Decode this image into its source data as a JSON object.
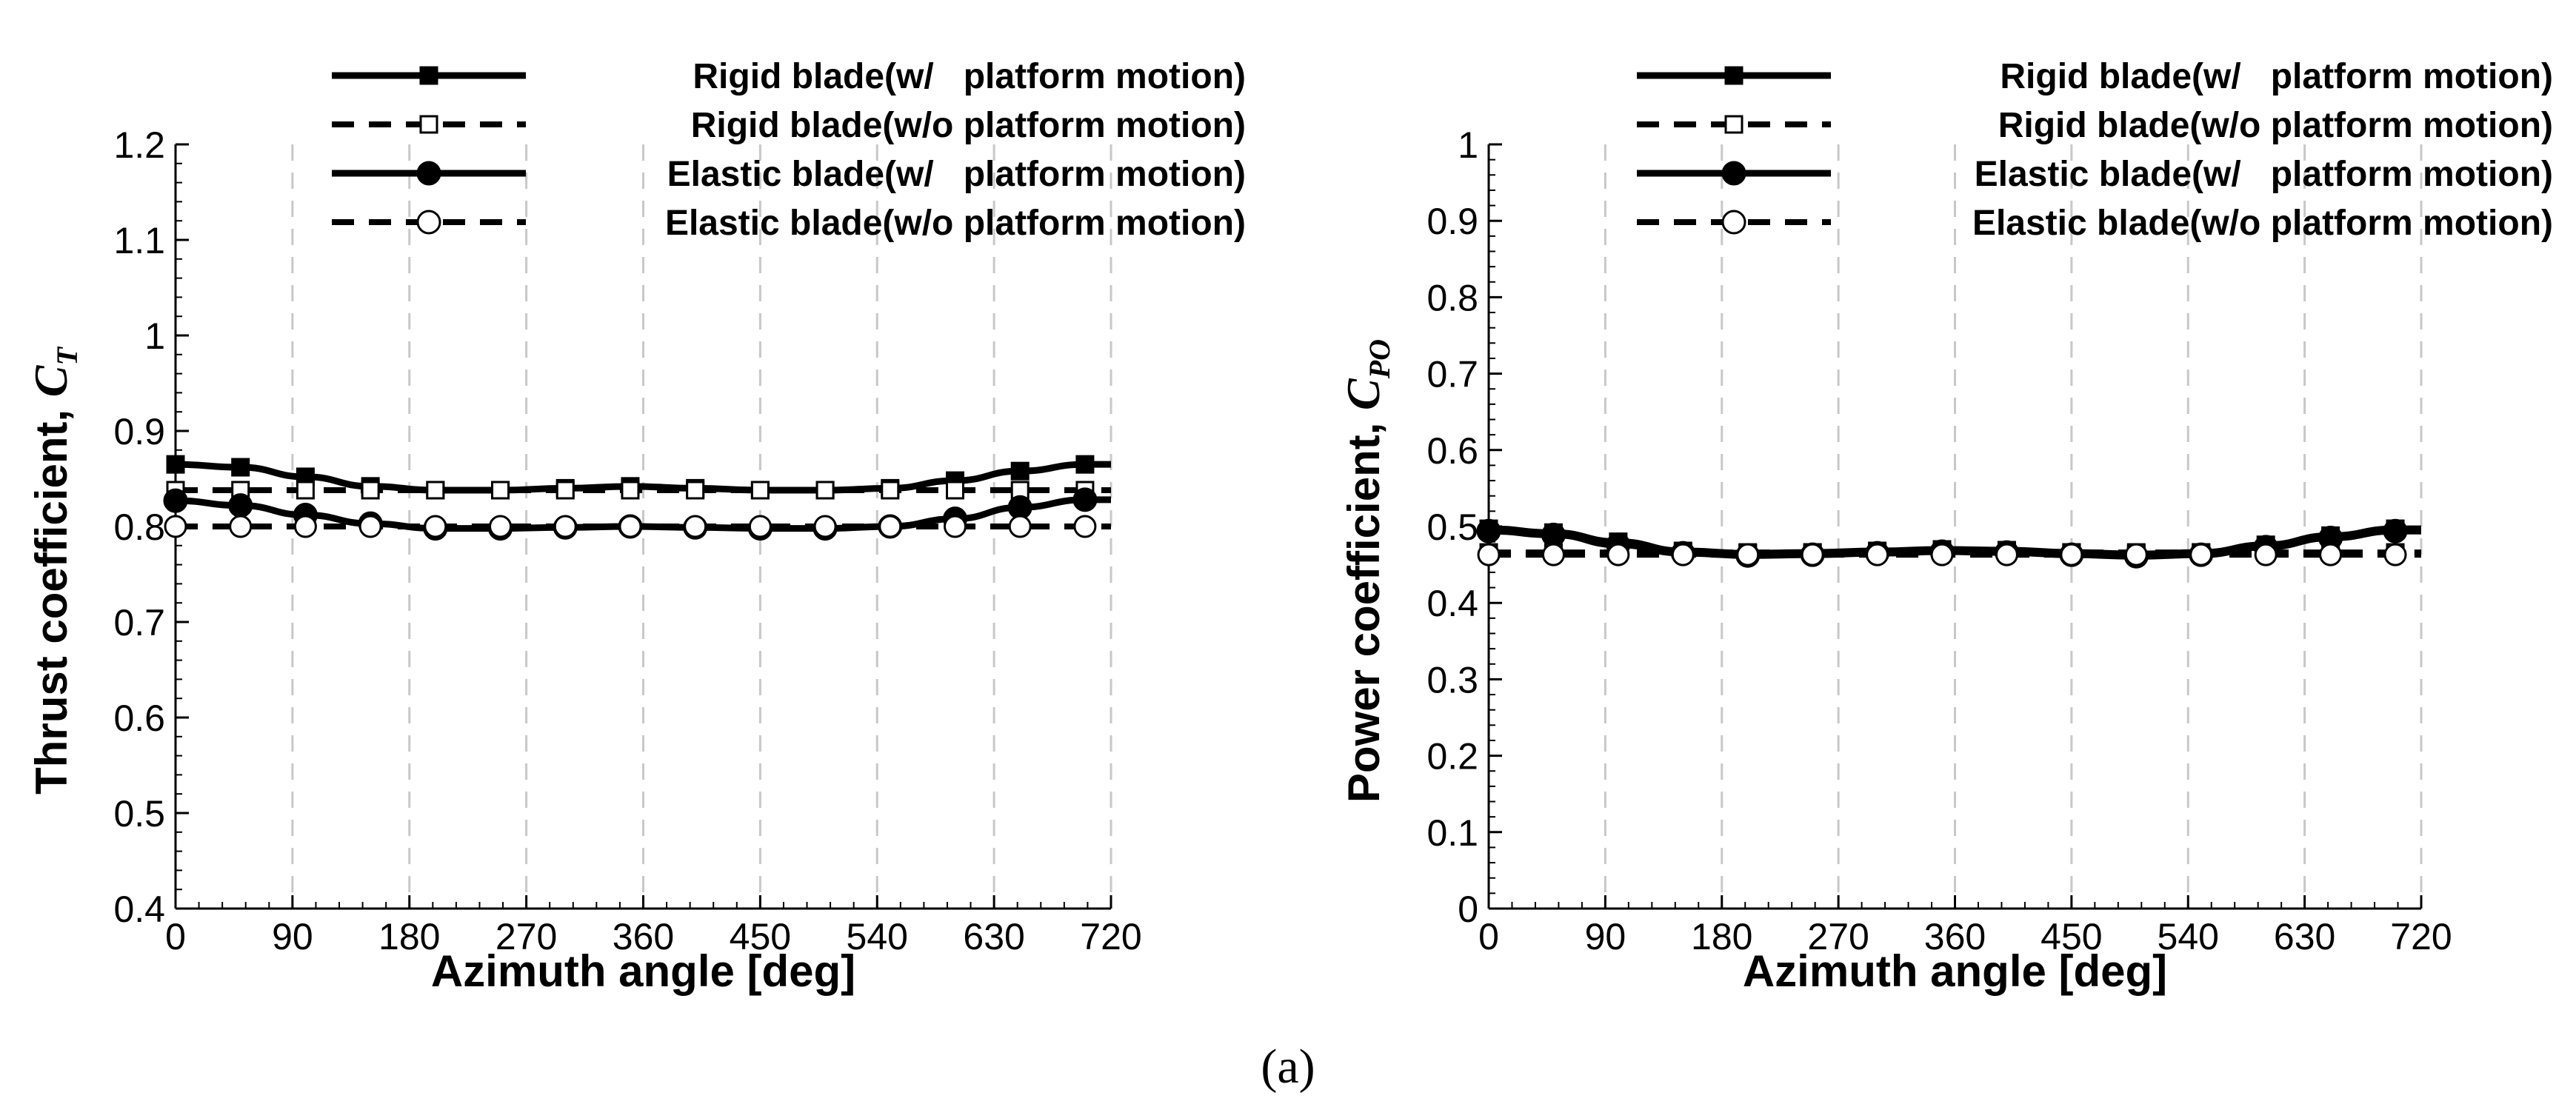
{
  "caption": "(a)",
  "chart_data": [
    {
      "type": "line",
      "title": "",
      "xlabel": "Azimuth angle [deg]",
      "ylabel": {
        "text": "Thrust coefficient, ",
        "symbol": "C",
        "subscript": "T"
      },
      "xlim": [
        0,
        720
      ],
      "ylim": [
        0.4,
        1.2
      ],
      "xticks": [
        0,
        90,
        180,
        270,
        360,
        450,
        540,
        630,
        720
      ],
      "yticks": [
        0.4,
        0.5,
        0.6,
        0.7,
        0.8,
        0.9,
        1,
        1.1,
        1.2
      ],
      "ytick_labels": [
        "0.4",
        "0.5",
        "0.6",
        "0.7",
        "0.8",
        "0.9",
        "1",
        "1.1",
        "1.2"
      ],
      "grid": "vertical dashed",
      "legend_position": "top",
      "x": [
        0,
        50,
        100,
        150,
        200,
        250,
        300,
        350,
        400,
        450,
        500,
        550,
        600,
        650,
        700
      ],
      "series": [
        {
          "name": "Rigid blade(w/   platform motion)",
          "line": "solid",
          "marker": "square-filled",
          "values": [
            0.865,
            0.862,
            0.852,
            0.842,
            0.838,
            0.838,
            0.84,
            0.842,
            0.84,
            0.838,
            0.838,
            0.84,
            0.848,
            0.858,
            0.865
          ]
        },
        {
          "name": "Rigid blade(w/o platform motion)",
          "line": "dashed",
          "marker": "square-open",
          "values": [
            0.838,
            0.838,
            0.838,
            0.838,
            0.838,
            0.838,
            0.838,
            0.838,
            0.838,
            0.838,
            0.838,
            0.838,
            0.838,
            0.838,
            0.838
          ]
        },
        {
          "name": "Elastic blade(w/   platform motion)",
          "line": "solid",
          "marker": "circle-filled",
          "values": [
            0.827,
            0.822,
            0.812,
            0.803,
            0.798,
            0.798,
            0.799,
            0.8,
            0.799,
            0.798,
            0.798,
            0.8,
            0.808,
            0.82,
            0.828
          ]
        },
        {
          "name": "Elastic blade(w/o platform motion)",
          "line": "dashed",
          "marker": "circle-open",
          "values": [
            0.8,
            0.8,
            0.8,
            0.8,
            0.8,
            0.8,
            0.8,
            0.8,
            0.8,
            0.8,
            0.8,
            0.8,
            0.8,
            0.8,
            0.8
          ]
        }
      ]
    },
    {
      "type": "line",
      "title": "",
      "xlabel": "Azimuth angle [deg]",
      "ylabel": {
        "text": "Power coefficient, ",
        "symbol": "C",
        "subscript": "PO"
      },
      "xlim": [
        0,
        720
      ],
      "ylim": [
        0,
        1
      ],
      "xticks": [
        0,
        90,
        180,
        270,
        360,
        450,
        540,
        630,
        720
      ],
      "yticks": [
        0,
        0.1,
        0.2,
        0.3,
        0.4,
        0.5,
        0.6,
        0.7,
        0.8,
        0.9,
        1
      ],
      "ytick_labels": [
        "0",
        "0.1",
        "0.2",
        "0.3",
        "0.4",
        "0.5",
        "0.6",
        "0.7",
        "0.8",
        "0.9",
        "1"
      ],
      "grid": "vertical dashed",
      "legend_position": "top",
      "x": [
        0,
        50,
        100,
        150,
        200,
        250,
        300,
        350,
        400,
        450,
        500,
        550,
        600,
        650,
        700
      ],
      "series": [
        {
          "name": "Rigid blade(w/   platform motion)",
          "line": "solid",
          "marker": "square-filled",
          "values": [
            0.497,
            0.492,
            0.48,
            0.468,
            0.465,
            0.466,
            0.468,
            0.47,
            0.469,
            0.466,
            0.464,
            0.466,
            0.476,
            0.488,
            0.497
          ]
        },
        {
          "name": "Rigid blade(w/o platform motion)",
          "line": "dashed",
          "marker": "square-open",
          "values": [
            0.466,
            0.466,
            0.466,
            0.466,
            0.466,
            0.466,
            0.466,
            0.466,
            0.466,
            0.466,
            0.466,
            0.466,
            0.466,
            0.466,
            0.466
          ]
        },
        {
          "name": "Elastic blade(w/   platform motion)",
          "line": "solid",
          "marker": "circle-filled",
          "values": [
            0.494,
            0.489,
            0.476,
            0.465,
            0.462,
            0.463,
            0.465,
            0.467,
            0.466,
            0.463,
            0.461,
            0.463,
            0.473,
            0.485,
            0.494
          ]
        },
        {
          "name": "Elastic blade(w/o platform motion)",
          "line": "dashed",
          "marker": "circle-open",
          "values": [
            0.463,
            0.463,
            0.463,
            0.463,
            0.463,
            0.463,
            0.463,
            0.463,
            0.463,
            0.463,
            0.463,
            0.463,
            0.463,
            0.463,
            0.463
          ]
        }
      ]
    }
  ]
}
